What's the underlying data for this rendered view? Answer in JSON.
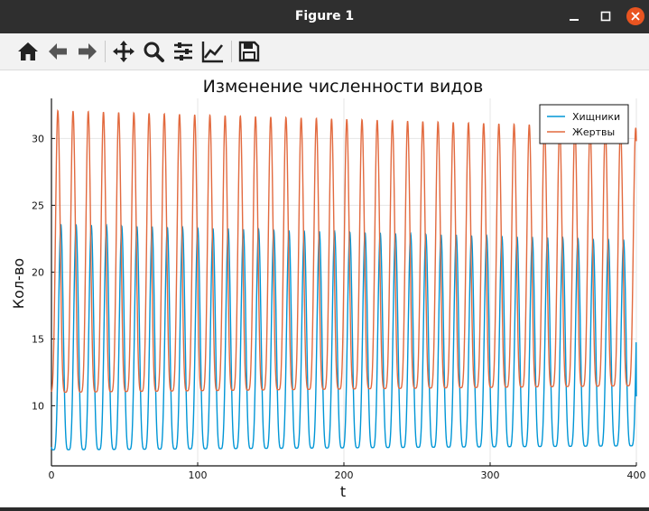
{
  "window": {
    "title": "Figure 1"
  },
  "toolbar": {
    "tools": [
      "home-icon",
      "back-arrow-icon",
      "forward-arrow-icon",
      "pan-icon",
      "zoom-icon",
      "subplots-config-icon",
      "edit-axis-icon",
      "save-icon"
    ]
  },
  "chart_data": {
    "type": "line",
    "title": "Изменение численности видов",
    "xlabel": "t",
    "ylabel": "Кол-во",
    "xlim": [
      0,
      400
    ],
    "ylim": [
      5.5,
      33
    ],
    "xticks": [
      "0",
      "100",
      "200",
      "300",
      "400"
    ],
    "yticks": [
      "10",
      "15",
      "20",
      "25",
      "30"
    ],
    "grid": true,
    "legend_position": "top-right",
    "period_approx": 10.4,
    "series": [
      {
        "name": "Хищники",
        "color": "#0096d6",
        "min_start": 6.7,
        "min_end": 7.0,
        "max_start": 23.6,
        "max_end": 22.4,
        "x_end": 400,
        "y_end": 10.7
      },
      {
        "name": "Жертвы",
        "color": "#e26a3f",
        "min_start": 11.0,
        "min_end": 11.5,
        "max_start": 32.1,
        "max_end": 30.8,
        "x_end": 400,
        "y_end": 29.8
      }
    ]
  }
}
